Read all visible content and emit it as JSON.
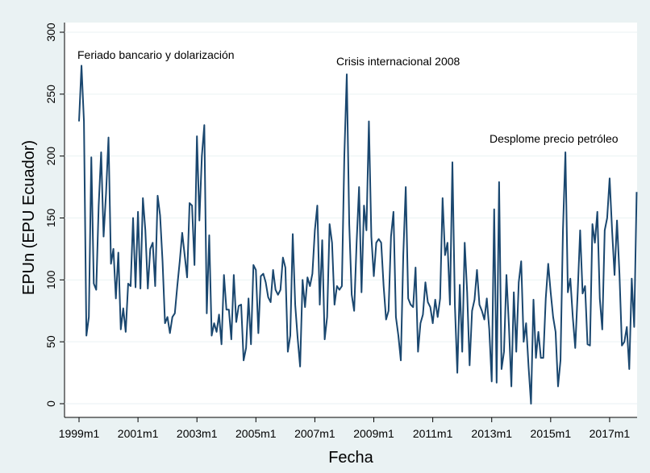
{
  "chart_data": {
    "type": "line",
    "x_label": "Fecha",
    "y_label": "EPUn (EPU Ecuador)",
    "annotations": [
      "Feriado bancario y dolarización",
      "Crisis internacional 2008",
      "Desplome precio petróleo"
    ],
    "x": [
      "1999m1",
      "1999m2",
      "1999m3",
      "1999m4",
      "1999m5",
      "1999m6",
      "1999m7",
      "1999m8",
      "1999m9",
      "1999m10",
      "1999m11",
      "1999m12",
      "2000m1",
      "2000m2",
      "2000m3",
      "2000m4",
      "2000m5",
      "2000m6",
      "2000m7",
      "2000m8",
      "2000m9",
      "2000m10",
      "2000m11",
      "2000m12",
      "2001m1",
      "2001m2",
      "2001m3",
      "2001m4",
      "2001m5",
      "2001m6",
      "2001m7",
      "2001m8",
      "2001m9",
      "2001m10",
      "2001m11",
      "2001m12",
      "2002m1",
      "2002m2",
      "2002m3",
      "2002m4",
      "2002m5",
      "2002m6",
      "2002m7",
      "2002m8",
      "2002m9",
      "2002m10",
      "2002m11",
      "2002m12",
      "2003m1",
      "2003m2",
      "2003m3",
      "2003m4",
      "2003m5",
      "2003m6",
      "2003m7",
      "2003m8",
      "2003m9",
      "2003m10",
      "2003m11",
      "2003m12",
      "2004m1",
      "2004m2",
      "2004m3",
      "2004m4",
      "2004m5",
      "2004m6",
      "2004m7",
      "2004m8",
      "2004m9",
      "2004m10",
      "2004m11",
      "2004m12",
      "2005m1",
      "2005m2",
      "2005m3",
      "2005m4",
      "2005m5",
      "2005m6",
      "2005m7",
      "2005m8",
      "2005m9",
      "2005m10",
      "2005m11",
      "2005m12",
      "2006m1",
      "2006m2",
      "2006m3",
      "2006m4",
      "2006m5",
      "2006m6",
      "2006m7",
      "2006m8",
      "2006m9",
      "2006m10",
      "2006m11",
      "2006m12",
      "2007m1",
      "2007m2",
      "2007m3",
      "2007m4",
      "2007m5",
      "2007m6",
      "2007m7",
      "2007m8",
      "2007m9",
      "2007m10",
      "2007m11",
      "2007m12",
      "2008m1",
      "2008m2",
      "2008m3",
      "2008m4",
      "2008m5",
      "2008m6",
      "2008m7",
      "2008m8",
      "2008m9",
      "2008m10",
      "2008m11",
      "2008m12",
      "2009m1",
      "2009m2",
      "2009m3",
      "2009m4",
      "2009m5",
      "2009m6",
      "2009m7",
      "2009m8",
      "2009m9",
      "2009m10",
      "2009m11",
      "2009m12",
      "2010m1",
      "2010m2",
      "2010m3",
      "2010m4",
      "2010m5",
      "2010m6",
      "2010m7",
      "2010m8",
      "2010m9",
      "2010m10",
      "2010m11",
      "2010m12",
      "2011m1",
      "2011m2",
      "2011m3",
      "2011m4",
      "2011m5",
      "2011m6",
      "2011m7",
      "2011m8",
      "2011m9",
      "2011m10",
      "2011m11",
      "2011m12",
      "2012m1",
      "2012m2",
      "2012m3",
      "2012m4",
      "2012m5",
      "2012m6",
      "2012m7",
      "2012m8",
      "2012m9",
      "2012m10",
      "2012m11",
      "2012m12",
      "2013m1",
      "2013m2",
      "2013m3",
      "2013m4",
      "2013m5",
      "2013m6",
      "2013m7",
      "2013m8",
      "2013m9",
      "2013m10",
      "2013m11",
      "2013m12",
      "2014m1",
      "2014m2",
      "2014m3",
      "2014m4",
      "2014m5",
      "2014m6",
      "2014m7",
      "2014m8",
      "2014m9",
      "2014m10",
      "2014m11",
      "2014m12",
      "2015m1",
      "2015m2",
      "2015m3",
      "2015m4",
      "2015m5",
      "2015m6",
      "2015m7",
      "2015m8",
      "2015m9",
      "2015m10",
      "2015m11",
      "2015m12",
      "2016m1",
      "2016m2",
      "2016m3",
      "2016m4",
      "2016m5",
      "2016m6",
      "2016m7",
      "2016m8",
      "2016m9",
      "2016m10",
      "2016m11",
      "2016m12",
      "2017m1",
      "2017m2",
      "2017m3",
      "2017m4",
      "2017m5",
      "2017m6",
      "2017m7",
      "2017m8",
      "2017m9",
      "2017m10",
      "2017m11",
      "2017m12"
    ],
    "series": [
      {
        "color": "#1a476f",
        "values": [
          228,
          273,
          228,
          55,
          70,
          199,
          97,
          92,
          160,
          203,
          135,
          170,
          215,
          113,
          125,
          85,
          122,
          60,
          77,
          58,
          97,
          95,
          150,
          94,
          155,
          93,
          166,
          140,
          93,
          125,
          130,
          95,
          168,
          152,
          115,
          65,
          70,
          57,
          70,
          73,
          95,
          115,
          138,
          120,
          102,
          162,
          160,
          112,
          216,
          148,
          200,
          225,
          73,
          136,
          55,
          65,
          58,
          72,
          48,
          104,
          76,
          76,
          52,
          104,
          66,
          79,
          80,
          35,
          45,
          85,
          48,
          112,
          108,
          57,
          103,
          105,
          98,
          86,
          82,
          108,
          92,
          88,
          92,
          118,
          110,
          42,
          55,
          137,
          80,
          53,
          30,
          100,
          78,
          102,
          95,
          105,
          140,
          160,
          80,
          132,
          52,
          70,
          145,
          130,
          80,
          95,
          92,
          95,
          200,
          266,
          145,
          88,
          75,
          130,
          175,
          90,
          160,
          140,
          228,
          135,
          103,
          130,
          133,
          130,
          95,
          68,
          75,
          135,
          155,
          70,
          55,
          35,
          120,
          175,
          85,
          80,
          78,
          110,
          42,
          65,
          72,
          98,
          82,
          78,
          65,
          84,
          70,
          85,
          166,
          120,
          130,
          80,
          195,
          80,
          25,
          96,
          42,
          130,
          90,
          31,
          75,
          84,
          108,
          80,
          75,
          68,
          85,
          60,
          18,
          157,
          17,
          179,
          28,
          42,
          104,
          63,
          14,
          90,
          42,
          98,
          115,
          50,
          65,
          30,
          0,
          84,
          37,
          58,
          37,
          37,
          85,
          113,
          90,
          70,
          58,
          14,
          35,
          140,
          203,
          90,
          101,
          70,
          45,
          90,
          140,
          89,
          95,
          48,
          47,
          145,
          130,
          155,
          85,
          60,
          140,
          150,
          182,
          140,
          104,
          148,
          105,
          47,
          50,
          62,
          28,
          101,
          62,
          171
        ]
      }
    ],
    "xticks": [
      "1999m1",
      "2001m1",
      "2003m1",
      "2005m1",
      "2007m1",
      "2009m1",
      "2011m1",
      "2013m1",
      "2015m1",
      "2017m1"
    ],
    "ylim": [
      0,
      300
    ],
    "yticks": [
      0,
      50,
      100,
      150,
      200,
      250,
      300
    ],
    "grid": true
  }
}
